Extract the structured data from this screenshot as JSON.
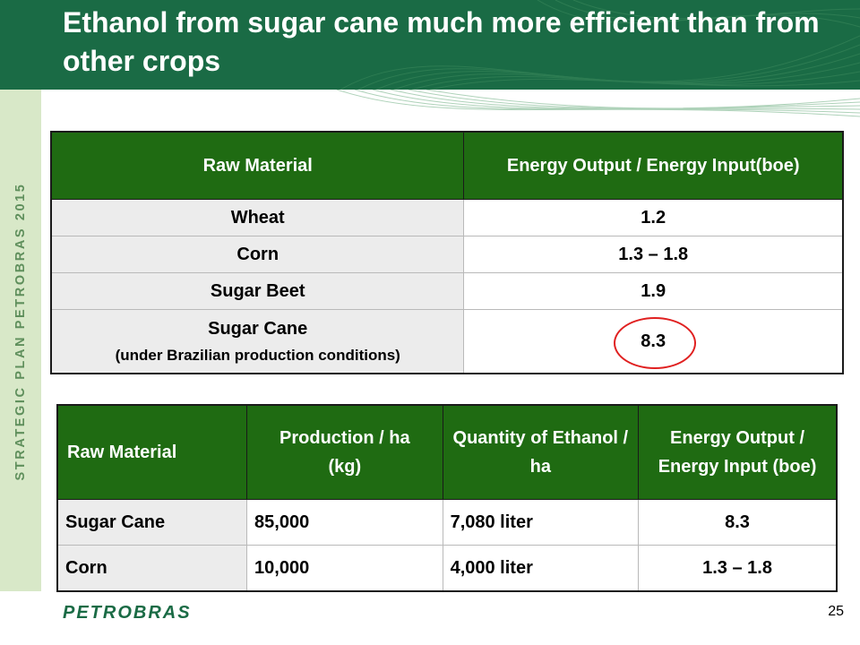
{
  "slide": {
    "title": "Ethanol from sugar cane much more efficient than from other crops",
    "side_text": "STRATEGIC PLAN PETROBRAS 2015",
    "logo_text": "PETROBRAS",
    "page_number": "25"
  },
  "colors": {
    "header_green": "#1a6b45",
    "table_header_green": "#1f6b12",
    "side_band": "#d8e8c8",
    "highlight_circle": "#e02020"
  },
  "table1": {
    "headers": [
      "Raw Material",
      "Energy Output / Energy Input(boe)"
    ],
    "rows": [
      {
        "material": "Wheat",
        "value": "1.2"
      },
      {
        "material": "Corn",
        "value": "1.3 – 1.8"
      },
      {
        "material": "Sugar Beet",
        "value": "1.9"
      },
      {
        "material": "Sugar Cane",
        "note": "(under Brazilian production conditions)",
        "value": "8.3"
      }
    ]
  },
  "table2": {
    "headers": [
      "Raw Material",
      "Production / ha",
      "(kg)",
      "Quantity of Ethanol / ha",
      "Energy Output / Energy Input (boe)"
    ],
    "rows": [
      {
        "material": "Sugar Cane",
        "production": "85,000",
        "ethanol": "7,080 liter",
        "ratio": "8.3"
      },
      {
        "material": "Corn",
        "production": "10,000",
        "ethanol": "4,000 liter",
        "ratio": "1.3 – 1.8"
      }
    ]
  }
}
